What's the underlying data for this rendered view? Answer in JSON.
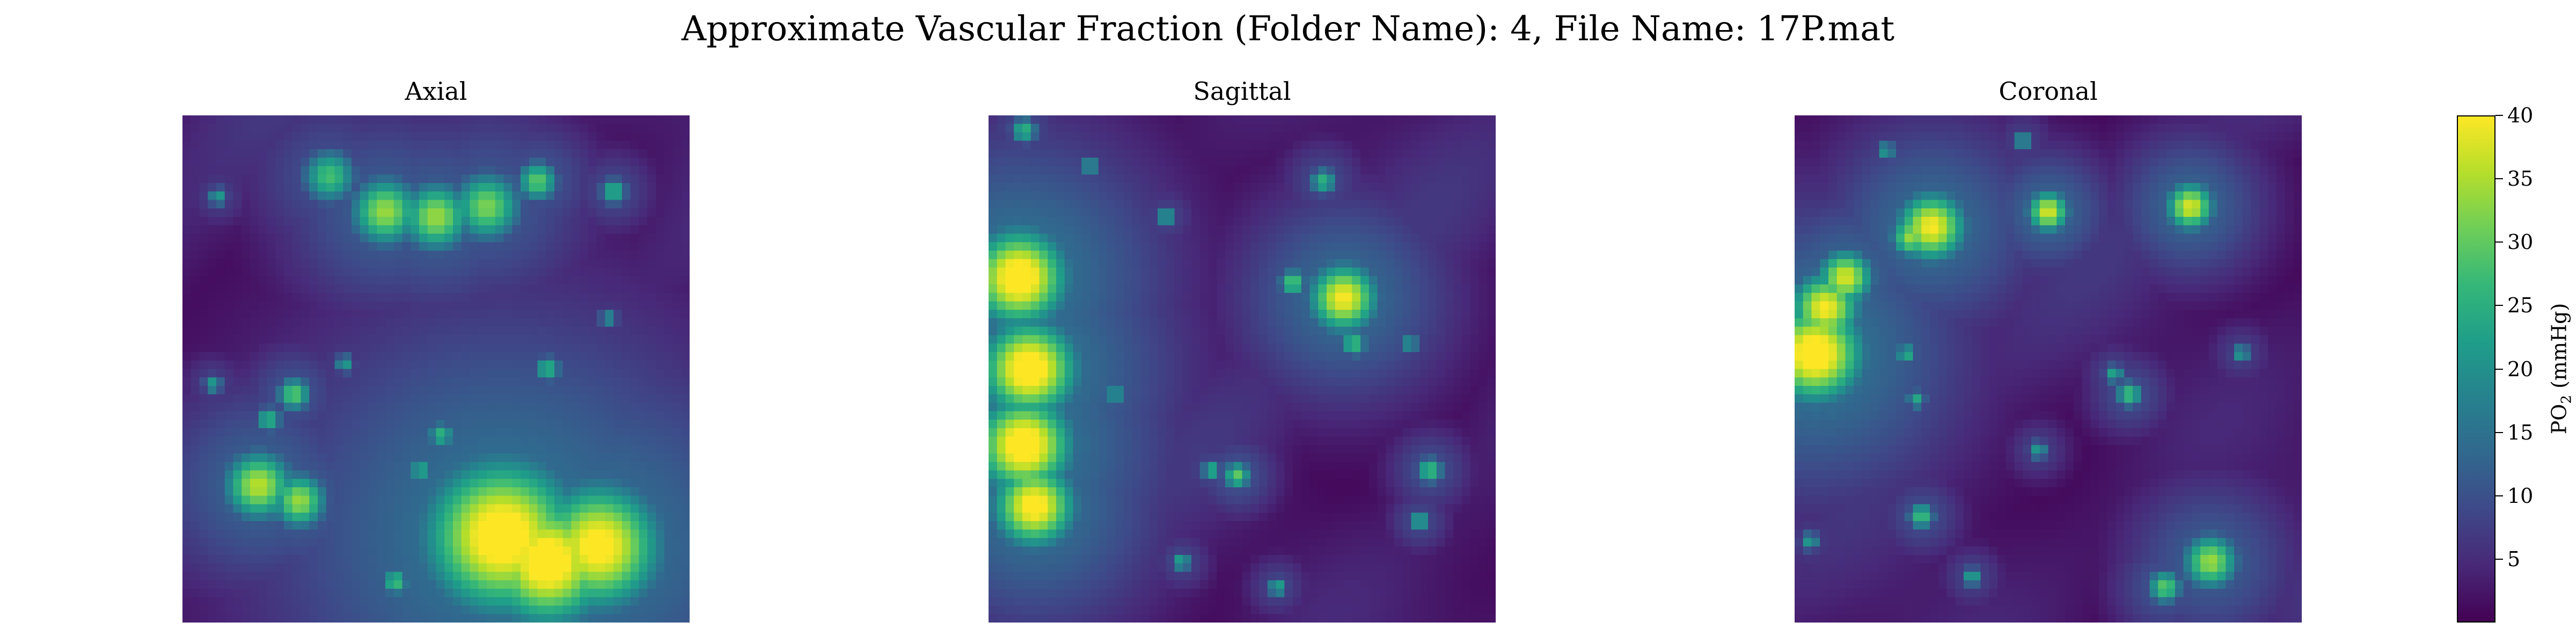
{
  "figure": {
    "suptitle": "Approximate Vascular Fraction (Folder Name): 4, File Name: 17P.mat"
  },
  "chart_data": [
    {
      "type": "heatmap",
      "title": "Axial",
      "colormap": "viridis",
      "vmin": 0,
      "vmax": 40,
      "axes_visible": false,
      "grid": false,
      "hotspots": [
        {
          "x": 0.63,
          "y": 0.83,
          "r": 0.11,
          "v": 44
        },
        {
          "x": 0.72,
          "y": 0.88,
          "r": 0.09,
          "v": 44
        },
        {
          "x": 0.82,
          "y": 0.85,
          "r": 0.09,
          "v": 42
        },
        {
          "x": 0.15,
          "y": 0.73,
          "r": 0.05,
          "v": 36
        },
        {
          "x": 0.23,
          "y": 0.76,
          "r": 0.04,
          "v": 34
        },
        {
          "x": 0.4,
          "y": 0.19,
          "r": 0.05,
          "v": 34
        },
        {
          "x": 0.5,
          "y": 0.2,
          "r": 0.05,
          "v": 34
        },
        {
          "x": 0.6,
          "y": 0.18,
          "r": 0.05,
          "v": 32
        },
        {
          "x": 0.29,
          "y": 0.12,
          "r": 0.04,
          "v": 28
        },
        {
          "x": 0.7,
          "y": 0.13,
          "r": 0.03,
          "v": 30
        },
        {
          "x": 0.22,
          "y": 0.55,
          "r": 0.025,
          "v": 30
        },
        {
          "x": 0.17,
          "y": 0.6,
          "r": 0.02,
          "v": 26
        },
        {
          "x": 0.72,
          "y": 0.5,
          "r": 0.02,
          "v": 26
        },
        {
          "x": 0.51,
          "y": 0.63,
          "r": 0.02,
          "v": 26
        },
        {
          "x": 0.47,
          "y": 0.7,
          "r": 0.02,
          "v": 24
        },
        {
          "x": 0.85,
          "y": 0.15,
          "r": 0.02,
          "v": 26
        },
        {
          "x": 0.42,
          "y": 0.92,
          "r": 0.02,
          "v": 28
        },
        {
          "x": 0.07,
          "y": 0.16,
          "r": 0.015,
          "v": 22
        },
        {
          "x": 0.32,
          "y": 0.49,
          "r": 0.015,
          "v": 22
        },
        {
          "x": 0.84,
          "y": 0.4,
          "r": 0.015,
          "v": 20
        },
        {
          "x": 0.06,
          "y": 0.53,
          "r": 0.015,
          "v": 22
        }
      ]
    },
    {
      "type": "heatmap",
      "title": "Sagittal",
      "colormap": "viridis",
      "vmin": 0,
      "vmax": 40,
      "axes_visible": false,
      "grid": false,
      "hotspots": [
        {
          "x": 0.06,
          "y": 0.32,
          "r": 0.07,
          "v": 44
        },
        {
          "x": 0.08,
          "y": 0.5,
          "r": 0.07,
          "v": 44
        },
        {
          "x": 0.07,
          "y": 0.65,
          "r": 0.07,
          "v": 44
        },
        {
          "x": 0.09,
          "y": 0.77,
          "r": 0.06,
          "v": 42
        },
        {
          "x": 0.7,
          "y": 0.36,
          "r": 0.05,
          "v": 40
        },
        {
          "x": 0.6,
          "y": 0.33,
          "r": 0.02,
          "v": 30
        },
        {
          "x": 0.72,
          "y": 0.45,
          "r": 0.02,
          "v": 28
        },
        {
          "x": 0.49,
          "y": 0.71,
          "r": 0.02,
          "v": 30
        },
        {
          "x": 0.44,
          "y": 0.7,
          "r": 0.015,
          "v": 26
        },
        {
          "x": 0.87,
          "y": 0.7,
          "r": 0.02,
          "v": 28
        },
        {
          "x": 0.85,
          "y": 0.8,
          "r": 0.015,
          "v": 26
        },
        {
          "x": 0.07,
          "y": 0.03,
          "r": 0.02,
          "v": 26
        },
        {
          "x": 0.66,
          "y": 0.13,
          "r": 0.02,
          "v": 26
        },
        {
          "x": 0.35,
          "y": 0.2,
          "r": 0.015,
          "v": 24
        },
        {
          "x": 0.25,
          "y": 0.55,
          "r": 0.015,
          "v": 24
        },
        {
          "x": 0.38,
          "y": 0.88,
          "r": 0.015,
          "v": 24
        },
        {
          "x": 0.57,
          "y": 0.93,
          "r": 0.015,
          "v": 24
        },
        {
          "x": 0.83,
          "y": 0.45,
          "r": 0.015,
          "v": 22
        },
        {
          "x": 0.2,
          "y": 0.1,
          "r": 0.015,
          "v": 22
        }
      ]
    },
    {
      "type": "heatmap",
      "title": "Coronal",
      "colormap": "viridis",
      "vmin": 0,
      "vmax": 40,
      "axes_visible": false,
      "grid": false,
      "hotspots": [
        {
          "x": 0.04,
          "y": 0.47,
          "r": 0.07,
          "v": 44
        },
        {
          "x": 0.06,
          "y": 0.38,
          "r": 0.05,
          "v": 40
        },
        {
          "x": 0.1,
          "y": 0.32,
          "r": 0.04,
          "v": 38
        },
        {
          "x": 0.27,
          "y": 0.22,
          "r": 0.05,
          "v": 40
        },
        {
          "x": 0.23,
          "y": 0.24,
          "r": 0.03,
          "v": 34
        },
        {
          "x": 0.5,
          "y": 0.19,
          "r": 0.03,
          "v": 38
        },
        {
          "x": 0.78,
          "y": 0.18,
          "r": 0.035,
          "v": 38
        },
        {
          "x": 0.82,
          "y": 0.88,
          "r": 0.04,
          "v": 34
        },
        {
          "x": 0.73,
          "y": 0.93,
          "r": 0.025,
          "v": 30
        },
        {
          "x": 0.66,
          "y": 0.55,
          "r": 0.02,
          "v": 28
        },
        {
          "x": 0.63,
          "y": 0.51,
          "r": 0.015,
          "v": 24
        },
        {
          "x": 0.22,
          "y": 0.47,
          "r": 0.015,
          "v": 26
        },
        {
          "x": 0.24,
          "y": 0.56,
          "r": 0.015,
          "v": 24
        },
        {
          "x": 0.25,
          "y": 0.79,
          "r": 0.02,
          "v": 28
        },
        {
          "x": 0.35,
          "y": 0.91,
          "r": 0.015,
          "v": 24
        },
        {
          "x": 0.48,
          "y": 0.66,
          "r": 0.015,
          "v": 22
        },
        {
          "x": 0.88,
          "y": 0.47,
          "r": 0.015,
          "v": 22
        },
        {
          "x": 0.18,
          "y": 0.07,
          "r": 0.015,
          "v": 22
        },
        {
          "x": 0.03,
          "y": 0.84,
          "r": 0.015,
          "v": 22
        },
        {
          "x": 0.45,
          "y": 0.05,
          "r": 0.015,
          "v": 22
        }
      ]
    }
  ],
  "colorbar": {
    "label": "PO2 (mmHg)",
    "label_main": "PO",
    "label_sub": "2",
    "label_unit": " (mmHg)",
    "min": 0,
    "max": 40,
    "ticks": [
      5,
      10,
      15,
      20,
      25,
      30,
      35,
      40
    ],
    "tick_labels": [
      "5",
      "10",
      "15",
      "20",
      "25",
      "30",
      "35",
      "40"
    ],
    "colormap": "viridis",
    "stops": [
      "#440154",
      "#482878",
      "#3e4989",
      "#31688e",
      "#26828e",
      "#1f9e89",
      "#35b779",
      "#6ece58",
      "#b5de2b",
      "#fde725"
    ]
  }
}
